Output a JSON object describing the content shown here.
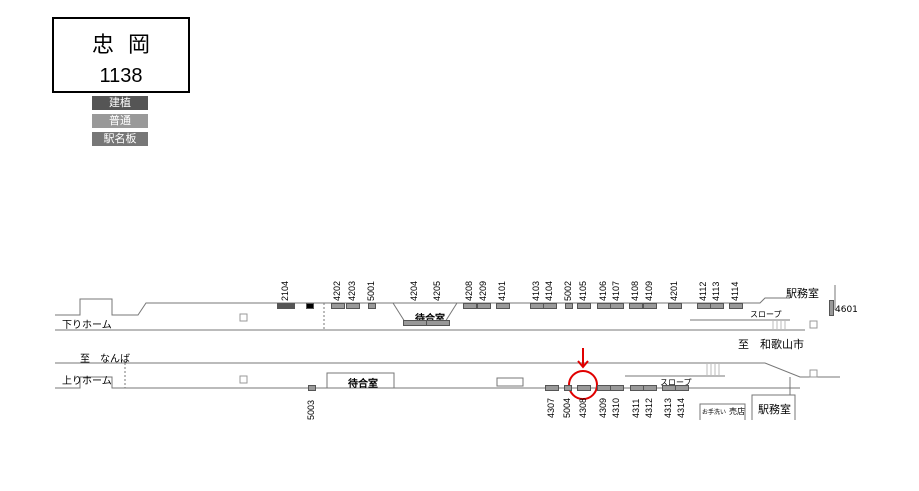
{
  "station": {
    "name": "忠岡",
    "code": "1138"
  },
  "legend": [
    {
      "label": "建植",
      "color": "#555555"
    },
    {
      "label": "普通",
      "color": "#999999"
    },
    {
      "label": "駅名板",
      "color": "#777777"
    }
  ],
  "platforms": {
    "down": {
      "label": "下りホーム",
      "direction": "至　和歌山市",
      "waiting_room": "待合室",
      "slope": "スロープ",
      "office": "駅務室"
    },
    "up": {
      "label": "上りホーム",
      "direction": "至　なんば",
      "waiting_room": "待合室",
      "slope": "スロープ",
      "office": "駅務室",
      "toilet": "お手洗い",
      "shop": "売店"
    }
  },
  "top_boards": [
    "2104",
    "4202",
    "4203",
    "5001",
    "4204",
    "4205",
    "4208",
    "4209",
    "4101",
    "4103",
    "4104",
    "5002",
    "4105",
    "4106",
    "4107",
    "4108",
    "4109",
    "4201",
    "4112",
    "4113",
    "4114"
  ],
  "side_board": "4601",
  "bottom_boards": [
    "5003",
    "4307",
    "5004",
    "4308",
    "4309",
    "4310",
    "4311",
    "4312",
    "4313",
    "4314"
  ],
  "highlight": {
    "board": "4308",
    "color": "#e00000"
  }
}
